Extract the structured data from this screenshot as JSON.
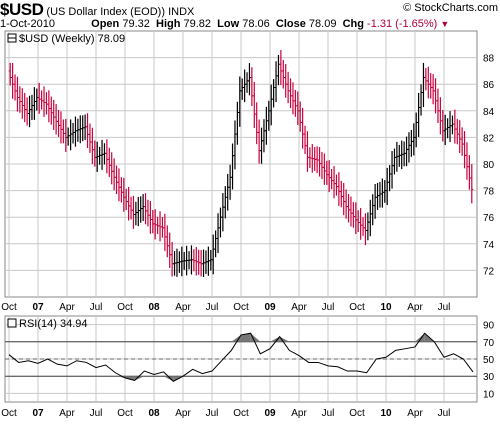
{
  "header": {
    "symbol": "$USD",
    "name": "(US Dollar Index (EOD))",
    "exchange": "INDX",
    "date": "1-Oct-2010",
    "brand": "© StockCharts.com",
    "open_label": "Open",
    "open": "79.32",
    "high_label": "High",
    "high": "79.82",
    "low_label": "Low",
    "low": "78.06",
    "close_label": "Close",
    "close": "78.09",
    "chg_label": "Chg",
    "chg": "-1.31 (-1.65%)"
  },
  "colors": {
    "up": "#000000",
    "down": "#c8003c",
    "grid": "#c8c8c8",
    "rsi_fill": "#777777"
  },
  "chart_data": [
    {
      "type": "line",
      "legend": "$USD (Weekly) 78.09",
      "ylim": [
        70,
        90
      ],
      "y_ticks": [
        72,
        74,
        76,
        78,
        80,
        82,
        84,
        86,
        88
      ],
      "x_tick_labels": [
        "Oct",
        "07",
        "Apr",
        "Jul",
        "Oct",
        "08",
        "Apr",
        "Jul",
        "Oct",
        "09",
        "Apr",
        "Jul",
        "Oct",
        "10",
        "Apr",
        "Jul"
      ],
      "x_bold_labels": [
        "07",
        "08",
        "09",
        "10"
      ],
      "x": [
        "2006-10",
        "2006-11",
        "2006-12",
        "2007-01",
        "2007-02",
        "2007-03",
        "2007-04",
        "2007-05",
        "2007-06",
        "2007-07",
        "2007-08",
        "2007-09",
        "2007-10",
        "2007-11",
        "2007-12",
        "2008-01",
        "2008-02",
        "2008-03",
        "2008-04",
        "2008-05",
        "2008-06",
        "2008-07",
        "2008-08",
        "2008-09",
        "2008-10",
        "2008-11",
        "2008-12",
        "2009-01",
        "2009-02",
        "2009-03",
        "2009-04",
        "2009-05",
        "2009-06",
        "2009-07",
        "2009-08",
        "2009-09",
        "2009-10",
        "2009-11",
        "2009-12",
        "2010-01",
        "2010-02",
        "2010-03",
        "2010-04",
        "2010-05",
        "2010-06",
        "2010-07",
        "2010-08",
        "2010-09",
        "2010-10"
      ],
      "series": [
        {
          "values": [
            87.0,
            85.0,
            83.8,
            85.0,
            84.5,
            83.2,
            82.0,
            82.5,
            82.8,
            80.5,
            80.8,
            79.0,
            77.5,
            76.2,
            76.8,
            75.5,
            75.2,
            72.5,
            72.7,
            72.8,
            72.5,
            72.8,
            76.0,
            79.0,
            85.5,
            86.5,
            81.0,
            84.0,
            87.5,
            85.5,
            84.0,
            80.5,
            80.3,
            79.2,
            78.3,
            76.8,
            75.8,
            75.0,
            77.5,
            78.0,
            80.5,
            80.8,
            82.0,
            86.5,
            85.5,
            82.5,
            83.0,
            81.5,
            78.09
          ]
        }
      ]
    },
    {
      "type": "line",
      "legend": "RSI(14) 34.94",
      "ylim": [
        0,
        100
      ],
      "y_ticks": [
        10,
        30,
        50,
        70,
        90
      ],
      "reference_lines": [
        30,
        70
      ],
      "x_tick_labels": [
        "Oct",
        "07",
        "Apr",
        "Jul",
        "Oct",
        "08",
        "Apr",
        "Jul",
        "Oct",
        "09",
        "Apr",
        "Jul",
        "Oct",
        "10",
        "Apr",
        "Jul"
      ],
      "series": [
        {
          "values": [
            55,
            46,
            48,
            45,
            50,
            44,
            42,
            48,
            46,
            40,
            43,
            34,
            28,
            25,
            36,
            32,
            35,
            24,
            30,
            38,
            33,
            36,
            48,
            60,
            78,
            80,
            56,
            62,
            76,
            60,
            54,
            46,
            46,
            42,
            41,
            36,
            36,
            34,
            50,
            52,
            60,
            62,
            64,
            80,
            70,
            52,
            56,
            50,
            34.94
          ]
        }
      ]
    }
  ]
}
